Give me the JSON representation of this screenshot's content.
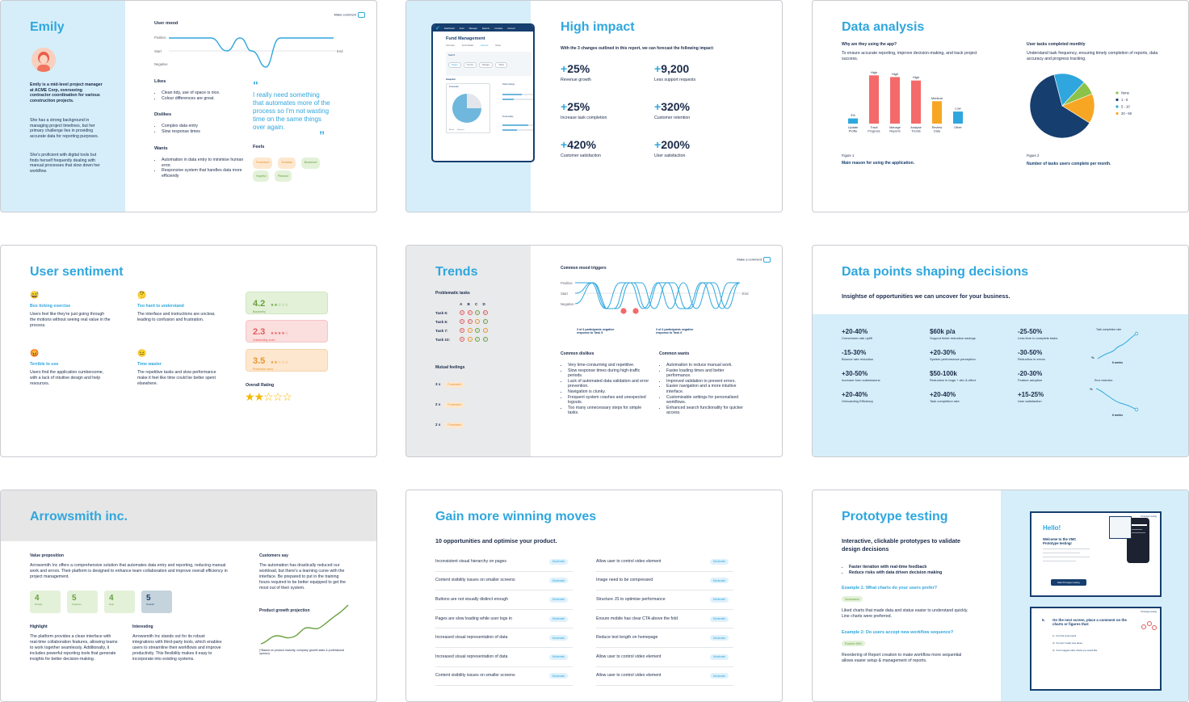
{
  "s1": {
    "name": "Emily",
    "bio_bold": "Emily is a mid-level project manager at ACME Corp, overseeing contractor coordination for various construction projects.",
    "bio_p1": "She has a strong background in managing project timelines, but her primary challenge lies in providing accurate data for reporting purposes.",
    "bio_p2": "She's proficient with digital tools but finds herself frequently dealing with manual processes that slow down her workflow.",
    "mood_title": "User mood",
    "mood_positive": "Positive",
    "mood_start": "Start",
    "mood_end": "End",
    "mood_negative": "Negative",
    "make_comment": "Make comment",
    "likes_title": "Likes",
    "likes": [
      "Clean tidy, use of space is nice.",
      "Colour differences are great."
    ],
    "dislikes_title": "Dislikes",
    "dislikes": [
      "Complex data entry",
      "Slow response times"
    ],
    "wants_title": "Wants",
    "wants": [
      "Automation in data entry to minimise human error.",
      "Responsive system that handles data more efficiently"
    ],
    "quote": "I really need something that automates more of the process so I'm not wasting time on the same things over again.",
    "feels_title": "Feels",
    "feels": [
      "Frustrated",
      "Tentative",
      "Burdened",
      "Hopeful",
      "Pleased"
    ]
  },
  "s2": {
    "title": "High impact",
    "intro": "With the 3 changes outlined in this report, we can forecast the following impact:",
    "stats": [
      {
        "sign": "+",
        "value": "25%",
        "label": "Revenue growth"
      },
      {
        "sign": "+",
        "value": "9,200",
        "label": "Less support requests"
      },
      {
        "sign": "+",
        "value": "25%",
        "label": "Increase task completion"
      },
      {
        "sign": "+",
        "value": "320%",
        "label": "Customer retention"
      },
      {
        "sign": "+",
        "value": "420%",
        "label": "Customer satisfaction"
      },
      {
        "sign": "+",
        "value": "200%",
        "label": "User satisfaction"
      }
    ],
    "mock_title": "Fund Management",
    "mock_nav": [
      "Dashboard",
      "Fund",
      "Manager",
      "Reports",
      "Contacts",
      "Account"
    ],
    "mock_tabs": [
      "Overview",
      "Fund details",
      "Account",
      "Notes"
    ],
    "mock_search": "Search",
    "mock_filters": [
      "Region",
      "Country",
      "Manager",
      "Status"
    ],
    "mock_snapshot": "Snapshot",
    "mock_chart_title": "Financials",
    "mock_stock": "Stock ratings",
    "mock_equity": "Fund equity",
    "mock_legend": [
      "Actual",
      "Forecast"
    ]
  },
  "s3": {
    "title": "Data analysis",
    "q1": "Why are they using the app?",
    "q1_desc": "To ensure accurate reporting, improve decision-making, and track project success.",
    "q2": "User tasks completed monthly",
    "q2_desc": "Understand task frequency, ensuring timely completion of reports, data accuracy and progress tracking.",
    "fig1": "Figure 1",
    "fig1_caption": "Main reason for using the application.",
    "fig2": "Figure 2",
    "fig2_caption": "Number of tasks users complete per month.",
    "chart_data": [
      {
        "type": "bar",
        "categories": [
          "Update Profile",
          "Track Progress",
          "Manage Reports",
          "Analyse Trends",
          "Review Data",
          "Other"
        ],
        "values": [
          3,
          28,
          27,
          25,
          13,
          7
        ],
        "data_labels": [
          "3%",
          "High",
          "High",
          "High",
          "Medium",
          "Low"
        ],
        "colors": [
          "#2fa7de",
          "#f46a6a",
          "#f46a6a",
          "#f46a6a",
          "#f7a623",
          "#2fa7de"
        ],
        "ylim": [
          0,
          30
        ]
      },
      {
        "type": "pie",
        "categories": [
          "None",
          "1 - 5",
          "5 - 10",
          "20 - 50"
        ],
        "values": [
          7,
          62,
          16,
          15
        ],
        "colors": [
          "#8bc34a",
          "#163e6e",
          "#2fa7de",
          "#f7a623"
        ],
        "legend": "right"
      }
    ]
  },
  "s4": {
    "title": "User sentiment",
    "items": [
      {
        "emoji": "😅",
        "title": "Box ticking exercise",
        "desc": "Users feel like they're just going through the motions without seeing real value in the process."
      },
      {
        "emoji": "🤔",
        "title": "Too hard to understand",
        "desc": "The interface and instructions are unclear, leading to confusion and frustration."
      },
      {
        "emoji": "😡",
        "title": "Terrible to use",
        "desc": "Users find the application cumbersome, with a lack of intuitive design and help resources."
      },
      {
        "emoji": "😐",
        "title": "Time waster",
        "desc": "The repetitive tasks and slow performance make it feel like time could be better spent elsewhere."
      }
    ],
    "scores": [
      {
        "score": "4.2",
        "stars": "★★☆☆☆",
        "label": "Bosworthy",
        "bg": "#e3f1d9",
        "fg": "#6aa13f"
      },
      {
        "score": "2.3",
        "stars": "★★★★☆",
        "label": "Outstanding score",
        "bg": "#fbdede",
        "fg": "#e05c5c"
      },
      {
        "score": "3.5",
        "stars": "★★☆☆☆",
        "label": "Productive users",
        "bg": "#fde7cf",
        "fg": "#e8952e"
      }
    ],
    "overall_title": "Overall Rating",
    "overall_stars": "★★☆☆☆"
  },
  "s5": {
    "title": "Trends",
    "problematic": "Problematic tasks",
    "cols": [
      "A",
      "B",
      "C",
      "D"
    ],
    "rows": [
      {
        "label": "Task 5:",
        "icons": [
          "x",
          "x",
          "ok",
          "x"
        ]
      },
      {
        "label": "Task 6:",
        "icons": [
          "x",
          "x",
          "m",
          "ok"
        ]
      },
      {
        "label": "Task 7:",
        "icons": [
          "x",
          "m",
          "ok",
          "m"
        ]
      },
      {
        "label": "Task 10:",
        "icons": [
          "x",
          "m",
          "ok",
          "ok"
        ]
      }
    ],
    "mutual": "Mutual feelings",
    "mutual_rows": [
      {
        "count": "3 x",
        "label": "Frustrated"
      },
      {
        "count": "2 x",
        "label": "Frustrated"
      },
      {
        "count": "2 x",
        "label": "Frustrated"
      }
    ],
    "mood_title": "Common mood triggers",
    "mood_positive": "Positive",
    "mood_start": "Start",
    "mood_end": "End",
    "mood_negative": "Negative",
    "make_comment": "Make a comment",
    "note1": "3 of 4 participants negative response to Task 5",
    "note2": "3 of 4 participants negative response to Task 6",
    "dislikes_title": "Common dislikes",
    "dislikes": [
      "Very time-consuming and repetitive.",
      "Slow response times during high-traffic periods.",
      "Lack of automated data validation and error prevention.",
      "Navigation is clunky.",
      "Frequent system crashes and unexpected logouts.",
      "Too many unnecessary steps for simple tasks."
    ],
    "wants_title": "Common wants",
    "wants": [
      "Automation to reduce manual work.",
      "Faster loading times and better performance.",
      "Improved validation to prevent errors.",
      "Easier navigation and a more intuitive interface.",
      "Customisable settings for personalised workflows.",
      "Enhanced search functionality for quicker access."
    ]
  },
  "s6": {
    "title": "Data points shaping decisions",
    "subtitle": "Insightse of opportunities we can uncover for your business.",
    "stats": [
      {
        "v": "+20-40%",
        "l": "Conversion rate uplift"
      },
      {
        "v": "$60k p/a",
        "l": "Support ticket reduction savings"
      },
      {
        "v": "-25-50%",
        "l": "Less time to complete tasks"
      },
      {
        "v": "-15-30%",
        "l": "Bounce rate reduction"
      },
      {
        "v": "+20-30%",
        "l": "System performance perception"
      },
      {
        "v": "-30-50%",
        "l": "Reduction in errors"
      },
      {
        "v": "+30-50%",
        "l": "Increase form submissions"
      },
      {
        "v": "$50-100k",
        "l": "Reduction in bugs + dev & effort"
      },
      {
        "v": "-20-30%",
        "l": "Feature adoption"
      },
      {
        "v": "+20-40%",
        "l": "Onboarding Efficiency"
      },
      {
        "v": "+20-40%",
        "l": "Task completion rate"
      },
      {
        "v": "+15-25%",
        "l": "User satisfaction"
      }
    ],
    "mini1_title": "Task completion rate",
    "mini1_x": "6 weeks",
    "mini1_y": "%",
    "mini2_title": "Error reduction",
    "mini2_x": "6 weeks",
    "mini2_y": "%"
  },
  "s7": {
    "title": "Arrowsmith inc.",
    "vp_title": "Value proposition",
    "vp": "Arrowsmith Inc offers a comprehensive solution that automates data entry and reporting, reducing manual work and errors. Their platform is designed to enhance team collaboration and improve overall efficiency in project management.",
    "scores": [
      {
        "v": "4",
        "l": "Design"
      },
      {
        "v": "5",
        "l": "Features"
      },
      {
        "v": "4",
        "l": "Help"
      },
      {
        "v": "5",
        "l": "Overall"
      }
    ],
    "highlight_title": "Highlight",
    "highlight": "The platform provides a clean interface with real-time collaboration features, allowing teams to work together seamlessly. Additionally, it includes powerful reporting tools that generate insights for better decision-making.",
    "interesting_title": "Interesting",
    "interesting": "Arrowsmith Inc stands out for its robust integrations with third-party tools, which enables users to streamline their workflows and improve productivity. This flexibility makes it easy to incorporate into existing systems.",
    "customers_title": "Customers say",
    "customers": "The automation has drastically reduced our workload, but there's a learning curve with the interface. Be prepared to put in the training hours required to be better equipped to get the most out of their system.",
    "growth_title": "Product growth projection",
    "growth_note": "(*Based on product maturity, company growth stats & professional opinion)"
  },
  "s8": {
    "title": "Gain more winning moves",
    "subtitle": "10 opportunities and optimise your product.",
    "left": [
      "Inconsistent visual hierarchy on pages",
      "Content visibility issues on smaller screens",
      "Buttons are not visually distinct enough",
      "Pages are slow loading while user logs in",
      "Increased visual representation of data",
      "Increased visual representation of data",
      "Content visibility issues on smaller screens"
    ],
    "right": [
      "Allow user to control video element",
      "Image need to be compressed",
      "Structure JS to optimise performance",
      "Ensure mobile has clear CTA above the fold",
      "Reduce text length on homepage",
      "Allow user to control video element",
      "Allow user to control video element"
    ],
    "chip": "Moderate"
  },
  "s9": {
    "title": "Prototype testing",
    "subtitle": "Interactive, clickable prototypes to validate design decisions",
    "bullets": [
      "Faster iteration with real-time feedback",
      "Reduce risks with data driven decision making"
    ],
    "ex1": "Example 1: What charts do your users prefer?",
    "ex1_chip": "Smartwave",
    "ex1_desc": "Liked charts that made data and status easier to understand quickly. Line charts were preferred.",
    "ex2": "Example 2: Do users accept new workflow sequence?",
    "ex2_chip": "Positive 85%",
    "ex2_desc": "Reordering of Report creation to make workflow more sequential allows easier setup & management of reports.",
    "card1_hello": "Hello!",
    "card1_welcome": "Welcome to the VMC Prototype testing!",
    "card1_btn": "Start Prototype testing",
    "card1_tag": "Prototype testing",
    "card2_title": "On the next screen, place a comment on the charts or figures that:",
    "card2_num": "5.",
    "card2_items": [
      "You find most useful",
      "You don't really care about",
      "You'd suggest other charts you would like"
    ],
    "card2_tag": "Prototype testing"
  }
}
